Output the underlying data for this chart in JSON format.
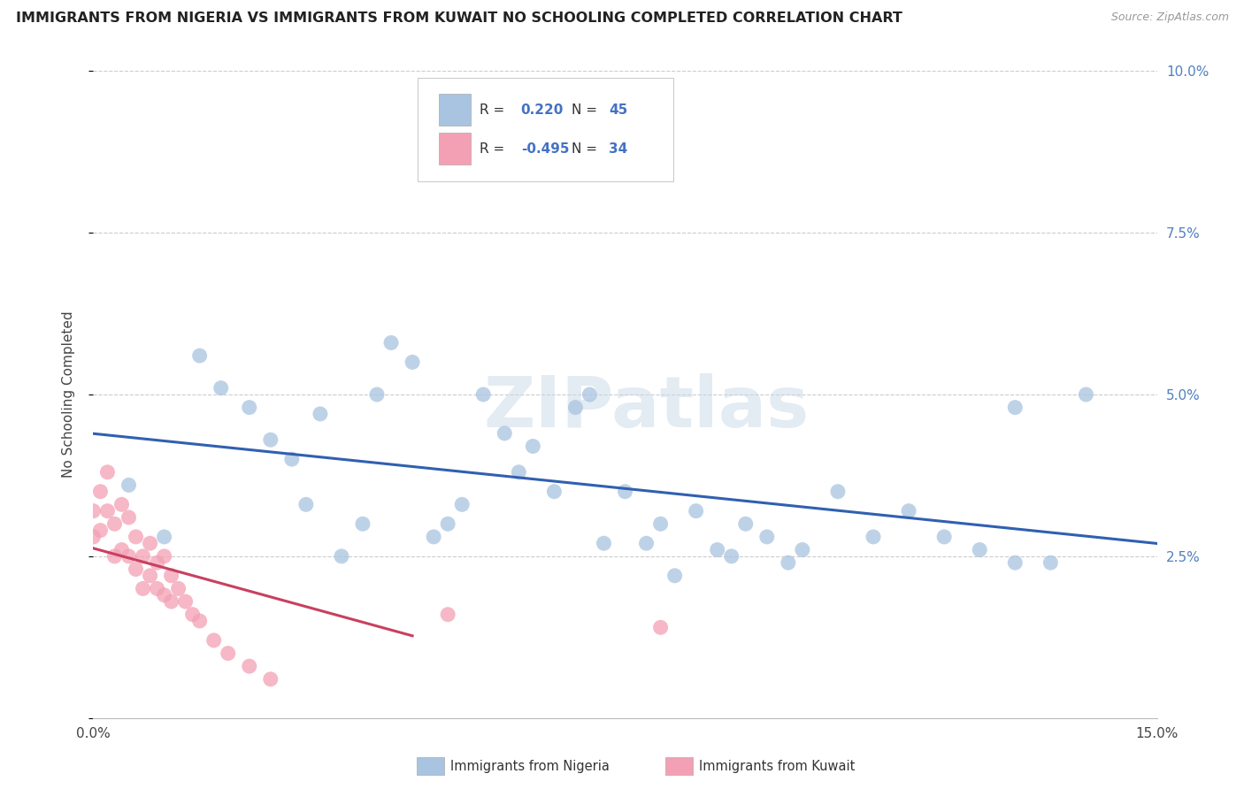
{
  "title": "IMMIGRANTS FROM NIGERIA VS IMMIGRANTS FROM KUWAIT NO SCHOOLING COMPLETED CORRELATION CHART",
  "source": "Source: ZipAtlas.com",
  "ylabel": "No Schooling Completed",
  "xlim": [
    0.0,
    0.15
  ],
  "ylim": [
    0.0,
    0.1
  ],
  "nigeria_R": 0.22,
  "nigeria_N": 45,
  "kuwait_R": -0.495,
  "kuwait_N": 34,
  "nigeria_color": "#a8c4e0",
  "kuwait_color": "#f4a0b4",
  "nigeria_line_color": "#3060b0",
  "kuwait_line_color": "#c84060",
  "background_color": "#ffffff",
  "nigeria_scatter_x": [
    0.005,
    0.01,
    0.015,
    0.018,
    0.022,
    0.025,
    0.028,
    0.03,
    0.032,
    0.035,
    0.038,
    0.04,
    0.042,
    0.045,
    0.048,
    0.05,
    0.052,
    0.055,
    0.058,
    0.06,
    0.062,
    0.065,
    0.068,
    0.07,
    0.072,
    0.075,
    0.078,
    0.08,
    0.082,
    0.085,
    0.088,
    0.09,
    0.092,
    0.095,
    0.098,
    0.1,
    0.105,
    0.11,
    0.115,
    0.12,
    0.125,
    0.13,
    0.135,
    0.14,
    0.13
  ],
  "nigeria_scatter_y": [
    0.036,
    0.028,
    0.056,
    0.051,
    0.048,
    0.043,
    0.04,
    0.033,
    0.047,
    0.025,
    0.03,
    0.05,
    0.058,
    0.055,
    0.028,
    0.03,
    0.033,
    0.05,
    0.044,
    0.038,
    0.042,
    0.035,
    0.048,
    0.05,
    0.027,
    0.035,
    0.027,
    0.03,
    0.022,
    0.032,
    0.026,
    0.025,
    0.03,
    0.028,
    0.024,
    0.026,
    0.035,
    0.028,
    0.032,
    0.028,
    0.026,
    0.024,
    0.024,
    0.05,
    0.048
  ],
  "kuwait_scatter_x": [
    0.0,
    0.0,
    0.001,
    0.001,
    0.002,
    0.002,
    0.003,
    0.003,
    0.004,
    0.004,
    0.005,
    0.005,
    0.006,
    0.006,
    0.007,
    0.007,
    0.008,
    0.008,
    0.009,
    0.009,
    0.01,
    0.01,
    0.011,
    0.011,
    0.012,
    0.013,
    0.014,
    0.015,
    0.017,
    0.019,
    0.022,
    0.025,
    0.05,
    0.08
  ],
  "kuwait_scatter_y": [
    0.032,
    0.028,
    0.035,
    0.029,
    0.038,
    0.032,
    0.03,
    0.025,
    0.033,
    0.026,
    0.031,
    0.025,
    0.028,
    0.023,
    0.025,
    0.02,
    0.027,
    0.022,
    0.024,
    0.02,
    0.025,
    0.019,
    0.022,
    0.018,
    0.02,
    0.018,
    0.016,
    0.015,
    0.012,
    0.01,
    0.008,
    0.006,
    0.016,
    0.014
  ]
}
